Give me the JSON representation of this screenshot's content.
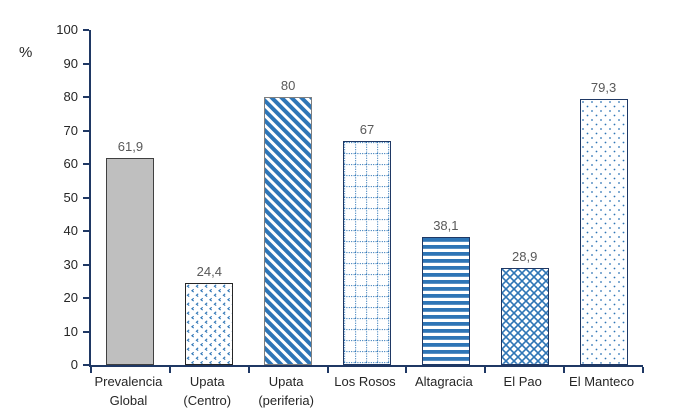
{
  "chart_data": {
    "type": "bar",
    "title": "",
    "ylabel": "%",
    "xlabel": "",
    "ylim": [
      0,
      100
    ],
    "ytick_step": 10,
    "grid": false,
    "legend": "none",
    "decimal_separator": ",",
    "categories": [
      "Prevalencia Global",
      "Upata (Centro)",
      "Upata (periferia)",
      "Los Rosos",
      "Altagracia",
      "El Pao",
      "El Manteco"
    ],
    "category_label_lines": [
      [
        "Prevalencia",
        "Global"
      ],
      [
        "Upata",
        "(Centro)"
      ],
      [
        "Upata",
        "(periferia)"
      ],
      [
        "Los Rosos"
      ],
      [
        "Altagracia"
      ],
      [
        "El Pao"
      ],
      [
        "El Manteco"
      ]
    ],
    "values": [
      61.9,
      24.4,
      80,
      67,
      38.1,
      28.9,
      79.3
    ],
    "value_labels": [
      "61,9",
      "24,4",
      "80",
      "67",
      "38,1",
      "28,9",
      "79,3"
    ],
    "bar_patterns": [
      "solid",
      "speckle",
      "diagonal-stripes",
      "dotted-grid",
      "horizontal-stripes",
      "crosshatch",
      "sparse-dots"
    ],
    "bar_border_colors": [
      "#404040",
      "#262626",
      "#7F7F7F",
      "#1F3864",
      "#1F3864",
      "#1F3864",
      "#1F3864"
    ],
    "bar_fill_colors": [
      "#BFBFBF",
      "#FFFFFF",
      "#FFFFFF",
      "#FFFFFF",
      "#FFFFFF",
      "#FFFFFF",
      "#FFFFFF"
    ],
    "pattern_color": "#2E75B6",
    "colors": {
      "axis": "#1F3864",
      "tick_label": "#262626",
      "value_label": "#595959",
      "background": "#FFFFFF",
      "solid_bar_fill": "#BFBFBF"
    }
  }
}
